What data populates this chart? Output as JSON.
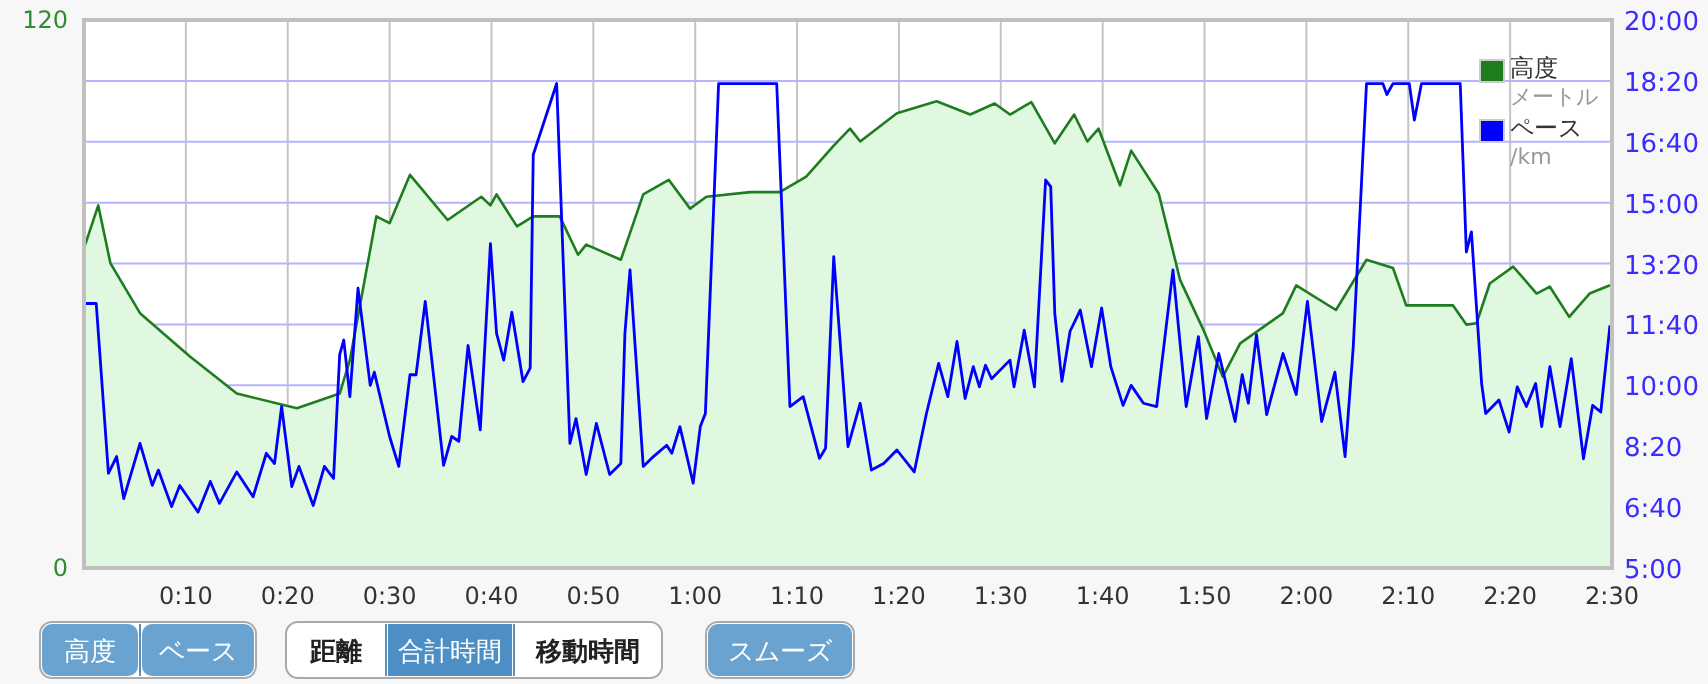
{
  "chart_data": {
    "type": "line",
    "xlim": [
      0,
      150
    ],
    "xticks": [
      {
        "value": 10,
        "label": "0:10"
      },
      {
        "value": 20,
        "label": "0:20"
      },
      {
        "value": 30,
        "label": "0:30"
      },
      {
        "value": 40,
        "label": "0:40"
      },
      {
        "value": 50,
        "label": "0:50"
      },
      {
        "value": 60,
        "label": "1:00"
      },
      {
        "value": 70,
        "label": "1:10"
      },
      {
        "value": 80,
        "label": "1:20"
      },
      {
        "value": 90,
        "label": "1:30"
      },
      {
        "value": 100,
        "label": "1:40"
      },
      {
        "value": 110,
        "label": "1:50"
      },
      {
        "value": 120,
        "label": "2:00"
      },
      {
        "value": 130,
        "label": "2:10"
      },
      {
        "value": 140,
        "label": "2:20"
      },
      {
        "value": 150,
        "label": "2:30"
      }
    ],
    "ylim": [
      0,
      120
    ],
    "yticks": [
      0,
      120
    ],
    "y2lim": [
      5,
      20
    ],
    "y2ticks": [
      {
        "value": 5,
        "label": "5:00"
      },
      {
        "value": 6.667,
        "label": "6:40"
      },
      {
        "value": 8.333,
        "label": "8:20"
      },
      {
        "value": 10,
        "label": "10:00"
      },
      {
        "value": 11.667,
        "label": "11:40"
      },
      {
        "value": 13.333,
        "label": "13:20"
      },
      {
        "value": 15,
        "label": "15:00"
      },
      {
        "value": 16.667,
        "label": "16:40"
      },
      {
        "value": 18.333,
        "label": "18:20"
      },
      {
        "value": 20,
        "label": "20:00"
      }
    ],
    "grid": true,
    "legend": "top right",
    "series": [
      {
        "name": "高度",
        "type": "area",
        "color": "#1e7d1e",
        "x": [
          0.1,
          1.4,
          2.6,
          5.5,
          10.4,
          15.0,
          20.9,
          25.1,
          26.1,
          28.7,
          30.0,
          32.0,
          35.7,
          39.0,
          39.9,
          40.5,
          42.5,
          44.1,
          46.7,
          48.5,
          49.3,
          52.7,
          54.9,
          57.4,
          59.5,
          61.1,
          65.4,
          68.3,
          70.9,
          73.6,
          75.2,
          76.2,
          79.8,
          83.7,
          87.0,
          89.4,
          90.9,
          93.0,
          95.3,
          97.2,
          98.5,
          99.6,
          101.7,
          102.8,
          105.5,
          107.6,
          109.9,
          111.8,
          113.5,
          117.7,
          119.0,
          122.9,
          125.9,
          128.5,
          129.8,
          134.4,
          135.7,
          136.7,
          138.0,
          140.3,
          142.6,
          143.9,
          145.8,
          147.8,
          149.8
        ],
        "values": [
          70.7,
          79.4,
          66.7,
          55.8,
          46.3,
          38.2,
          35,
          38.2,
          45.5,
          77,
          75.5,
          86.1,
          76.2,
          81.3,
          79.4,
          81.8,
          74.8,
          77,
          77,
          68.6,
          70.8,
          67.5,
          81.8,
          85,
          78.7,
          81.3,
          82.3,
          82.3,
          85.7,
          92.5,
          96.2,
          93.4,
          99.6,
          102.2,
          99.3,
          101.7,
          99.3,
          102,
          93,
          99.3,
          93.4,
          96.2,
          83.8,
          91.4,
          82,
          63.1,
          52.1,
          41.9,
          49.2,
          55.8,
          61.9,
          56.5,
          67.5,
          65.7,
          57.5,
          57.5,
          53.3,
          53.6,
          62.3,
          66,
          60.1,
          61.6,
          55,
          60.1,
          61.9
        ]
      },
      {
        "name": "ペース",
        "axis": "y2",
        "color": "#0000ff",
        "x": [
          0.1,
          1.2,
          2.4,
          3.2,
          3.9,
          5.5,
          6.7,
          7.3,
          8.6,
          9.4,
          11.2,
          12.4,
          13.3,
          15.0,
          16.6,
          17.9,
          18.7,
          19.4,
          20.4,
          21.1,
          22.5,
          23.6,
          24.5,
          25.1,
          25.5,
          26.1,
          26.9,
          28.1,
          28.5,
          30.0,
          30.9,
          32.0,
          32.6,
          33.5,
          35.3,
          36.1,
          36.8,
          37.7,
          38.9,
          39.9,
          40.5,
          41.2,
          42.0,
          43.1,
          43.8,
          44.1,
          46.4,
          47.7,
          48.3,
          49.3,
          50.3,
          51.6,
          52.7,
          53.1,
          53.6,
          54.9,
          55.9,
          57.2,
          57.7,
          58.5,
          59.8,
          60.5,
          61.0,
          62.3,
          68.0,
          69.3,
          70.6,
          72.2,
          72.8,
          73.6,
          75.0,
          76.2,
          77.3,
          78.5,
          79.8,
          81.5,
          82.7,
          83.9,
          84.8,
          85.7,
          86.5,
          87.3,
          87.9,
          88.5,
          89.1,
          90.9,
          91.3,
          92.3,
          93.3,
          94.4,
          94.9,
          95.3,
          96.0,
          96.8,
          97.8,
          98.9,
          99.9,
          100.8,
          102.0,
          102.8,
          104.0,
          105.3,
          106.9,
          108.2,
          109.4,
          110.2,
          111.4,
          113.0,
          113.7,
          114.3,
          115.1,
          116.1,
          117.7,
          119.0,
          120.1,
          121.5,
          122.8,
          123.8,
          124.6,
          125.9,
          127.5,
          127.9,
          128.5,
          130.1,
          130.6,
          131.3,
          135.1,
          135.7,
          136.2,
          137.2,
          137.6,
          138.9,
          139.9,
          140.7,
          141.6,
          142.5,
          143.1,
          143.9,
          144.9,
          146.0,
          147.2,
          148.1,
          148.9,
          149.8
        ],
        "values": [
          12.24,
          12.24,
          7.59,
          8.05,
          6.9,
          8.41,
          7.26,
          7.68,
          6.68,
          7.26,
          6.53,
          7.37,
          6.77,
          7.63,
          6.95,
          8.14,
          7.86,
          9.42,
          7.23,
          7.78,
          6.71,
          7.78,
          7.45,
          10.84,
          11.24,
          9.69,
          12.66,
          10.0,
          10.36,
          8.6,
          7.78,
          10.29,
          10.29,
          12.3,
          7.81,
          8.6,
          8.47,
          11.09,
          8.78,
          13.88,
          11.42,
          10.69,
          12.0,
          10.1,
          10.47,
          16.31,
          18.26,
          8.41,
          9.09,
          7.56,
          8.96,
          7.56,
          7.86,
          11.42,
          13.16,
          7.78,
          8.05,
          8.36,
          8.14,
          8.87,
          7.32,
          8.87,
          9.23,
          18.26,
          18.26,
          9.42,
          9.69,
          8.0,
          8.28,
          13.52,
          8.32,
          9.51,
          7.68,
          7.86,
          8.23,
          7.63,
          9.23,
          10.6,
          9.69,
          11.2,
          9.64,
          10.51,
          9.96,
          10.55,
          10.18,
          10.69,
          9.96,
          11.51,
          9.96,
          15.62,
          15.44,
          11.97,
          10.11,
          11.48,
          12.06,
          10.51,
          12.12,
          10.51,
          9.45,
          10.0,
          9.51,
          9.42,
          13.16,
          9.42,
          11.33,
          9.09,
          10.87,
          9.01,
          10.29,
          9.51,
          11.39,
          9.2,
          10.87,
          9.75,
          12.3,
          9.01,
          10.36,
          8.05,
          11.06,
          18.26,
          18.26,
          17.96,
          18.26,
          18.26,
          17.26,
          18.26,
          18.26,
          13.65,
          14.2,
          10.05,
          9.23,
          9.6,
          8.72,
          9.96,
          9.42,
          10.05,
          8.87,
          10.51,
          8.87,
          10.73,
          7.99,
          9.45,
          9.27,
          11.64
        ]
      }
    ],
    "annotations": [
      "高度",
      "ベース",
      "距離",
      "合計時間",
      "移動時間",
      "スムーズ",
      "メートル",
      "/km"
    ]
  }
}
